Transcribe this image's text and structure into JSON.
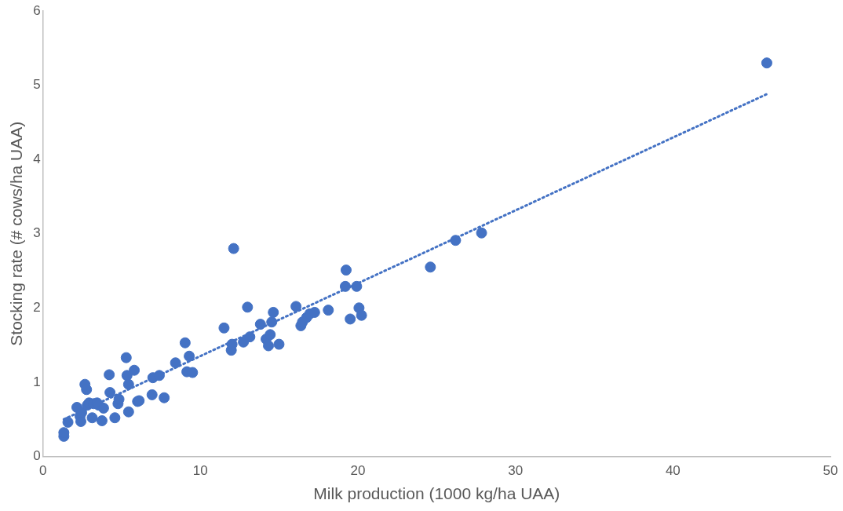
{
  "chart_data": {
    "type": "scatter",
    "xlabel": "Milk production (1000 kg/ha UAA)",
    "ylabel": "Stocking rate (# cows/ha UAA)",
    "xlim": [
      0,
      50
    ],
    "xticks": [
      0,
      10,
      20,
      30,
      40,
      50
    ],
    "ylim": [
      0,
      6
    ],
    "yticks": [
      0,
      1,
      2,
      3,
      4,
      5,
      6
    ],
    "grid": false,
    "legend": false,
    "marker": "circle",
    "series": [
      {
        "color": "#4472c4",
        "x": [
          1.33,
          1.33,
          1.59,
          2.16,
          2.67,
          2.77,
          2.36,
          2.41,
          2.46,
          2.82,
          3.13,
          2.93,
          3.23,
          3.44,
          3.54,
          3.75,
          3.85,
          4.21,
          4.26,
          4.57,
          4.77,
          4.83,
          5.29,
          5.44,
          5.34,
          5.44,
          5.8,
          6.01,
          6.11,
          6.93,
          6.98,
          7.39,
          7.7,
          8.42,
          9.03,
          9.14,
          9.29,
          9.5,
          11.5,
          11.96,
          12.01,
          12.11,
          12.73,
          12.99,
          13.14,
          13.81,
          14.17,
          14.32,
          14.43,
          14.53,
          14.63,
          14.99,
          16.07,
          16.38,
          16.48,
          16.74,
          16.94,
          17.25,
          18.12,
          19.25,
          19.2,
          19.92,
          19.51,
          20.07,
          20.23,
          24.6,
          26.2,
          27.85,
          45.96
        ],
        "values": [
          0.27,
          0.32,
          0.46,
          0.66,
          0.97,
          0.9,
          0.54,
          0.47,
          0.59,
          0.69,
          0.52,
          0.72,
          0.71,
          0.72,
          0.69,
          0.48,
          0.65,
          1.1,
          0.86,
          0.52,
          0.71,
          0.77,
          1.33,
          0.6,
          1.09,
          0.97,
          1.16,
          0.74,
          0.75,
          0.83,
          1.06,
          1.09,
          0.79,
          1.26,
          1.53,
          1.14,
          1.35,
          1.13,
          1.73,
          1.43,
          1.51,
          2.8,
          1.54,
          2.01,
          1.61,
          1.78,
          1.58,
          1.49,
          1.64,
          1.81,
          1.94,
          1.51,
          2.02,
          1.76,
          1.81,
          1.87,
          1.92,
          1.94,
          1.97,
          2.51,
          2.29,
          2.29,
          1.85,
          2.0,
          1.9,
          2.55,
          2.91,
          3.01,
          5.3
        ]
      },
      {
        "type": "line",
        "color": "#4472c4",
        "line_style": "dotted",
        "marker": "none",
        "x": [
          1.33,
          45.96
        ],
        "values": [
          0.5,
          4.88
        ]
      }
    ]
  }
}
